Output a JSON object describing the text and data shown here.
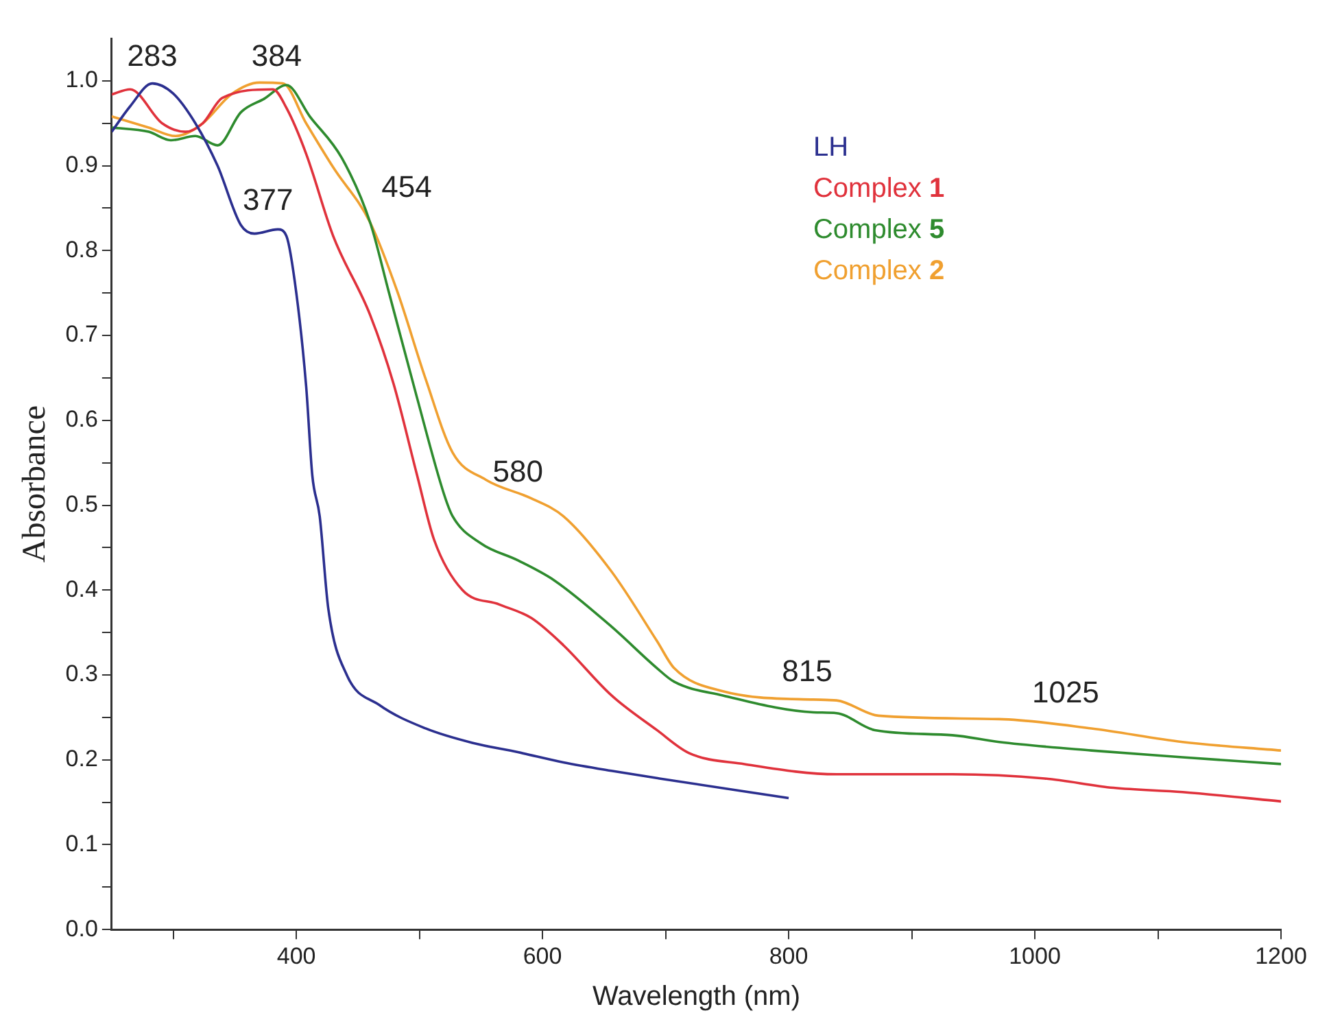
{
  "chart_data": {
    "type": "line",
    "xlabel": "Wavelength (nm)",
    "ylabel": "Absorbance",
    "xlim": [
      250,
      1200
    ],
    "ylim": [
      0,
      1.05
    ],
    "xticks": [
      {
        "value": 300,
        "label": null
      },
      400,
      {
        "value": 500,
        "label": null
      },
      600,
      {
        "value": 700,
        "label": null
      },
      800,
      {
        "value": 900,
        "label": null
      },
      1000,
      {
        "value": 1100,
        "label": null
      },
      1200
    ],
    "yticks": [
      {
        "value": 0,
        "label": "0.0"
      },
      {
        "value": 0.05,
        "label": null
      },
      0.1,
      {
        "value": 0.15,
        "label": null
      },
      0.2,
      {
        "value": 0.25,
        "label": null
      },
      0.3,
      {
        "value": 0.35,
        "label": null
      },
      0.4,
      {
        "value": 0.45,
        "label": null
      },
      0.5,
      {
        "value": 0.55,
        "label": null
      },
      0.6,
      {
        "value": 0.65,
        "label": null
      },
      0.7,
      {
        "value": 0.75,
        "label": null
      },
      0.8,
      {
        "value": 0.85,
        "label": null
      },
      0.9,
      {
        "value": 0.95,
        "label": null
      },
      {
        "value": 1,
        "label": "1.0"
      }
    ],
    "grid": false,
    "legend": "top right",
    "marker": "none",
    "line_style": "solid",
    "series": [
      {
        "name": "LH",
        "color": "#2b2f8f",
        "x": [
          250,
          265,
          283,
          300,
          318,
          336,
          355,
          366,
          385,
          392,
          400,
          408,
          413,
          419,
          426,
          441,
          467,
          505,
          543,
          580,
          617,
          656,
          695,
          800
        ],
        "values": [
          0.94,
          0.97,
          0.997,
          0.985,
          0.95,
          0.9,
          0.83,
          0.82,
          0.825,
          0.817,
          0.75,
          0.64,
          0.535,
          0.487,
          0.378,
          0.3,
          0.265,
          0.237,
          0.22,
          0.209,
          0.197,
          0.187,
          0.178,
          0.155
        ]
      },
      {
        "name": "Complex 1",
        "color": "#e0323c",
        "x": [
          250,
          265,
          291,
          310,
          324,
          340,
          381,
          392,
          408,
          430,
          460,
          479,
          498,
          512,
          535,
          565,
          591,
          617,
          656,
          693,
          719,
          764,
          839,
          933,
          1008,
          1064,
          1120,
          1200
        ],
        "values": [
          0.984,
          0.99,
          0.95,
          0.94,
          0.95,
          0.98,
          0.99,
          0.968,
          0.914,
          0.817,
          0.724,
          0.643,
          0.536,
          0.459,
          0.4,
          0.383,
          0.367,
          0.335,
          0.276,
          0.235,
          0.208,
          0.195,
          0.183,
          0.183,
          0.178,
          0.167,
          0.162,
          0.151
        ]
      },
      {
        "name": "Complex 5",
        "color": "#2e8b2e",
        "x": [
          250,
          280,
          298,
          318,
          336,
          355,
          374,
          392,
          411,
          437,
          460,
          475,
          498,
          520,
          527,
          550,
          580,
          610,
          656,
          693,
          707,
          746,
          820,
          839,
          870,
          933,
          971,
          1046,
          1120,
          1200
        ],
        "values": [
          0.945,
          0.94,
          0.93,
          0.935,
          0.924,
          0.963,
          0.979,
          0.995,
          0.958,
          0.909,
          0.833,
          0.752,
          0.627,
          0.513,
          0.487,
          0.455,
          0.435,
          0.411,
          0.357,
          0.308,
          0.292,
          0.276,
          0.256,
          0.255,
          0.235,
          0.229,
          0.221,
          0.211,
          0.203,
          0.195
        ]
      },
      {
        "name": "Complex 2",
        "color": "#f0a030",
        "x": [
          250,
          280,
          302,
          324,
          347,
          370,
          389,
          408,
          430,
          460,
          482,
          505,
          527,
          554,
          591,
          617,
          656,
          693,
          707,
          746,
          820,
          839,
          873,
          971,
          1046,
          1120,
          1200
        ],
        "values": [
          0.958,
          0.945,
          0.935,
          0.95,
          0.984,
          0.998,
          0.997,
          0.95,
          0.898,
          0.833,
          0.752,
          0.649,
          0.562,
          0.53,
          0.508,
          0.487,
          0.422,
          0.34,
          0.308,
          0.281,
          0.271,
          0.27,
          0.252,
          0.248,
          0.237,
          0.221,
          0.211
        ]
      }
    ],
    "annotations": [
      {
        "text": "283",
        "x": 283,
        "y": 1.0
      },
      {
        "text": "384",
        "x": 384,
        "y": 1.0
      },
      {
        "text": "377",
        "x": 377,
        "y": 0.83
      },
      {
        "text": "454",
        "x": 454,
        "y": 0.846
      },
      {
        "text": "580",
        "x": 580,
        "y": 0.51
      },
      {
        "text": "815",
        "x": 815,
        "y": 0.275
      },
      {
        "text": "1025",
        "x": 1025,
        "y": 0.25
      }
    ]
  }
}
